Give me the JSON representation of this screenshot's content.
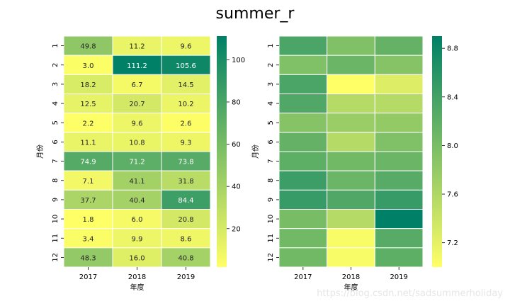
{
  "figure": {
    "suptitle": "summer_r",
    "watermark": "https://blog.csdn.net/sadsummerholiday"
  },
  "chart_data": [
    {
      "type": "heatmap",
      "colormap": "summer_r",
      "xlabel": "年度",
      "ylabel": "月份",
      "x_categories": [
        "2017",
        "2018",
        "2019"
      ],
      "y_categories": [
        "1",
        "2",
        "3",
        "4",
        "5",
        "6",
        "7",
        "8",
        "9",
        "10",
        "11",
        "12"
      ],
      "annotate": true,
      "values": [
        [
          49.8,
          11.2,
          9.6
        ],
        [
          3.0,
          111.2,
          105.6
        ],
        [
          18.2,
          6.7,
          14.5
        ],
        [
          12.5,
          20.7,
          10.2
        ],
        [
          2.2,
          9.6,
          2.6
        ],
        [
          11.1,
          10.8,
          9.3
        ],
        [
          74.9,
          71.2,
          73.8
        ],
        [
          7.1,
          41.1,
          31.8
        ],
        [
          37.7,
          40.4,
          84.4
        ],
        [
          1.8,
          6.0,
          20.8
        ],
        [
          3.4,
          9.9,
          8.6
        ],
        [
          48.3,
          16.0,
          40.8
        ]
      ],
      "vmin": 1.8,
      "vmax": 111.2,
      "colorbar_ticks": [
        "20",
        "40",
        "60",
        "80",
        "100"
      ],
      "colorbar_tick_values": [
        20,
        40,
        60,
        80,
        100
      ]
    },
    {
      "type": "heatmap",
      "colormap": "summer_r",
      "xlabel": "年度",
      "ylabel": "月份",
      "x_categories": [
        "2017",
        "2018",
        "2019"
      ],
      "y_categories": [
        "1",
        "2",
        "3",
        "4",
        "5",
        "6",
        "7",
        "8",
        "9",
        "10",
        "11",
        "12"
      ],
      "annotate": false,
      "values": [
        [
          8.35,
          7.95,
          8.15
        ],
        [
          7.95,
          8.1,
          7.9
        ],
        [
          8.35,
          7.0,
          7.25
        ],
        [
          8.3,
          7.55,
          7.55
        ],
        [
          7.9,
          7.75,
          7.8
        ],
        [
          8.15,
          7.55,
          7.95
        ],
        [
          8.2,
          8.05,
          8.1
        ],
        [
          8.45,
          8.1,
          8.25
        ],
        [
          8.5,
          8.3,
          8.5
        ],
        [
          8.0,
          7.55,
          8.9
        ],
        [
          8.05,
          7.05,
          8.25
        ],
        [
          8.05,
          7.05,
          8.2
        ]
      ],
      "vmin": 7.0,
      "vmax": 8.9,
      "colorbar_ticks": [
        "7.2",
        "7.6",
        "8.0",
        "8.4",
        "8.8"
      ],
      "colorbar_tick_values": [
        7.2,
        7.6,
        8.0,
        8.4,
        8.8
      ]
    }
  ]
}
